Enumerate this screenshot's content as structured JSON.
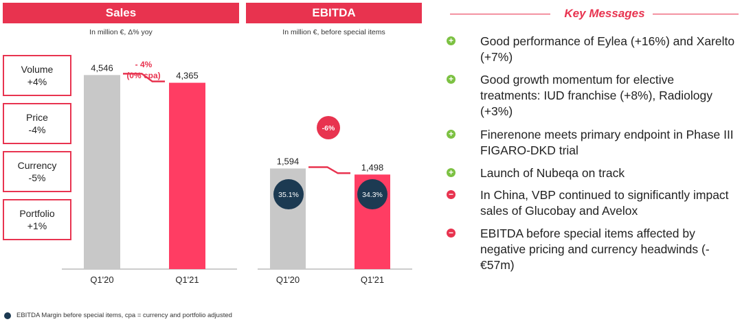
{
  "colors": {
    "accent": "#e8334f",
    "bar_q1_20": "#c8c8c8",
    "bar_q1_21": "#ff3d63",
    "margin_circle": "#1c3a52",
    "positive": "#7cc142",
    "negative": "#e8334f"
  },
  "sales": {
    "title": "Sales",
    "subtitle": "In million €, Δ% yoy",
    "drivers": [
      {
        "label": "Volume",
        "value": "+4%"
      },
      {
        "label": "Price",
        "value": "-4%"
      },
      {
        "label": "Currency",
        "value": "-5%"
      },
      {
        "label": "Portfolio",
        "value": "+1%"
      }
    ],
    "change_line1": "- 4%",
    "change_line2": "(0% cpa)"
  },
  "ebitda": {
    "title": "EBITDA",
    "subtitle": "In million €, before special items",
    "change": "-6%"
  },
  "chart_data": [
    {
      "type": "bar",
      "title": "Sales",
      "categories": [
        "Q1'20",
        "Q1'21"
      ],
      "values": [
        4546,
        4365
      ],
      "value_labels": [
        "4,546",
        "4,365"
      ],
      "ylim": [
        0,
        5500
      ]
    },
    {
      "type": "bar",
      "title": "EBITDA",
      "categories": [
        "Q1'20",
        "Q1'21"
      ],
      "values": [
        1594,
        1498
      ],
      "value_labels": [
        "1,594",
        "1,498"
      ],
      "margins": [
        "35.1%",
        "34.3%"
      ],
      "ylim": [
        0,
        3720
      ]
    }
  ],
  "key_messages": {
    "title": "Key Messages",
    "items": [
      {
        "type": "plus",
        "text": "Good performance of Eylea (+16%) and Xarelto (+7%)"
      },
      {
        "type": "plus",
        "text": "Good growth momentum for elective treatments: IUD franchise (+8%), Radiology (+3%)"
      },
      {
        "type": "plus",
        "text": "Finerenone meets primary endpoint in Phase III FIGARO-DKD trial"
      },
      {
        "type": "plus",
        "text": "Launch of Nubeqa on track"
      },
      {
        "type": "minus",
        "text": "In China, VBP continued to significantly impact sales of Glucobay and Avelox"
      },
      {
        "type": "minus",
        "text": "EBITDA before special items affected by negative pricing and currency headwinds (-€57m)"
      }
    ]
  },
  "footnote": "EBITDA Margin before special items, cpa = currency and portfolio adjusted"
}
